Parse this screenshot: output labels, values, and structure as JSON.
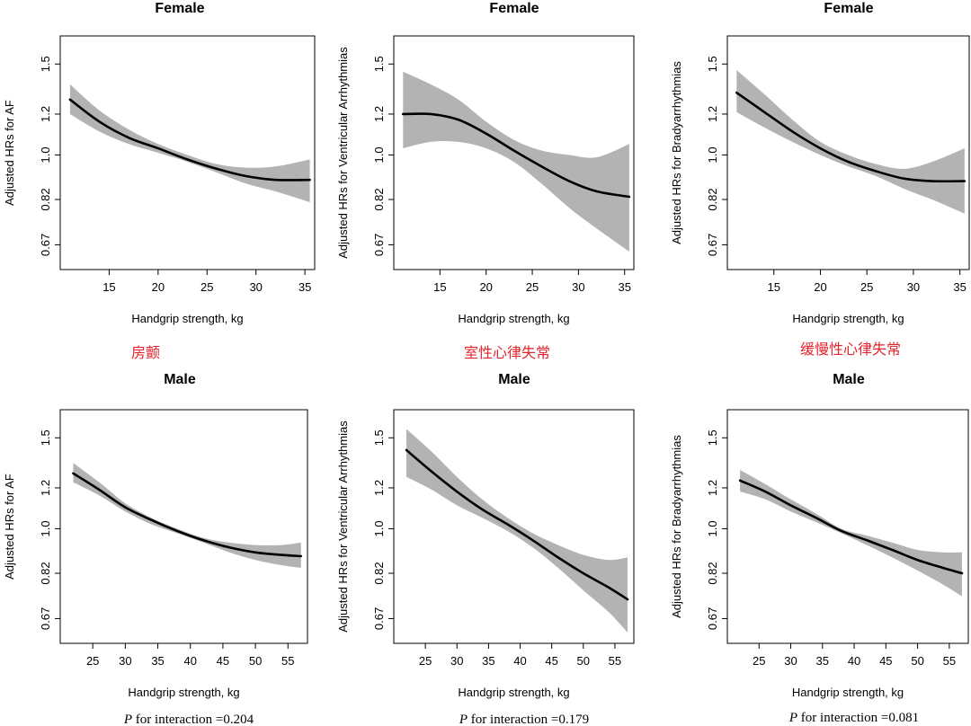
{
  "chart_data": [
    {
      "type": "line",
      "title": "Female",
      "xlabel": "Handgrip strength, kg",
      "ylabel": "Adjusted HRs for AF",
      "xlim": [
        10,
        36
      ],
      "ylim": [
        0.6,
        1.7
      ],
      "y_log_scale": true,
      "xticks": [
        15,
        20,
        25,
        30,
        35
      ],
      "yticks": [
        0.67,
        0.82,
        1.0,
        1.2,
        1.5
      ],
      "ytick_labels": [
        "0.67",
        "0.82",
        "1.0",
        "1.2",
        "1.5"
      ],
      "grid": false,
      "x": [
        11,
        14,
        17,
        20,
        23,
        26,
        29,
        32,
        35.5
      ],
      "y": [
        1.28,
        1.16,
        1.08,
        1.03,
        0.98,
        0.94,
        0.91,
        0.895,
        0.895
      ],
      "ci_lower": [
        1.2,
        1.11,
        1.05,
        1.01,
        0.97,
        0.925,
        0.88,
        0.85,
        0.81
      ],
      "ci_upper": [
        1.37,
        1.22,
        1.12,
        1.05,
        1.0,
        0.96,
        0.945,
        0.95,
        0.98
      ]
    },
    {
      "type": "line",
      "title": "Female",
      "xlabel": "Handgrip strength, kg",
      "ylabel": "Adjusted HRs for Ventricular Arrhythmias",
      "xlim": [
        10,
        36
      ],
      "ylim": [
        0.6,
        1.7
      ],
      "y_log_scale": true,
      "xticks": [
        15,
        20,
        25,
        30,
        35
      ],
      "yticks": [
        0.67,
        0.82,
        1.0,
        1.2,
        1.5
      ],
      "ytick_labels": [
        "0.67",
        "0.82",
        "1.0",
        "1.2",
        "1.5"
      ],
      "grid": false,
      "x": [
        11,
        14,
        17,
        20,
        23,
        26,
        29,
        32,
        35.5
      ],
      "y": [
        1.2,
        1.2,
        1.17,
        1.1,
        1.02,
        0.95,
        0.89,
        0.85,
        0.83
      ],
      "ci_lower": [
        1.03,
        1.06,
        1.06,
        1.03,
        0.97,
        0.88,
        0.79,
        0.72,
        0.65
      ],
      "ci_upper": [
        1.45,
        1.37,
        1.28,
        1.16,
        1.07,
        1.02,
        1.0,
        0.99,
        1.05
      ]
    },
    {
      "type": "line",
      "title": "Female",
      "xlabel": "Handgrip strength, kg",
      "ylabel": "Adjusted HRs for Bradyarrhythmias",
      "xlim": [
        10,
        36
      ],
      "ylim": [
        0.6,
        1.7
      ],
      "y_log_scale": true,
      "xticks": [
        15,
        20,
        25,
        30,
        35
      ],
      "yticks": [
        0.67,
        0.82,
        1.0,
        1.2,
        1.5
      ],
      "ytick_labels": [
        "0.67",
        "0.82",
        "1.0",
        "1.2",
        "1.5"
      ],
      "grid": false,
      "x": [
        11,
        14,
        17,
        20,
        23,
        26,
        29,
        32,
        35.5
      ],
      "y": [
        1.32,
        1.21,
        1.11,
        1.03,
        0.97,
        0.93,
        0.9,
        0.89,
        0.89
      ],
      "ci_lower": [
        1.21,
        1.13,
        1.06,
        1.0,
        0.95,
        0.91,
        0.86,
        0.82,
        0.77
      ],
      "ci_upper": [
        1.46,
        1.31,
        1.17,
        1.06,
        1.0,
        0.96,
        0.94,
        0.97,
        1.03
      ]
    },
    {
      "type": "line",
      "title": "Male",
      "xlabel": "Handgrip strength, kg",
      "ylabel": "Adjusted HRs for AF",
      "xlim": [
        20,
        58
      ],
      "ylim": [
        0.6,
        1.7
      ],
      "y_log_scale": true,
      "xticks": [
        25,
        30,
        35,
        40,
        45,
        50,
        55
      ],
      "yticks": [
        0.67,
        0.82,
        1.0,
        1.2,
        1.5
      ],
      "ytick_labels": [
        "0.67",
        "0.82",
        "1.0",
        "1.2",
        "1.5"
      ],
      "grid": false,
      "x": [
        22,
        26,
        30,
        34,
        38,
        42,
        46,
        50,
        54,
        57
      ],
      "y": [
        1.28,
        1.19,
        1.1,
        1.04,
        0.99,
        0.95,
        0.92,
        0.9,
        0.89,
        0.885
      ],
      "ci_lower": [
        1.23,
        1.16,
        1.08,
        1.02,
        0.98,
        0.94,
        0.9,
        0.87,
        0.85,
        0.84
      ],
      "ci_upper": [
        1.34,
        1.23,
        1.12,
        1.05,
        1.0,
        0.96,
        0.94,
        0.93,
        0.93,
        0.94
      ]
    },
    {
      "type": "line",
      "title": "Male",
      "xlabel": "Handgrip strength, kg",
      "ylabel": "Adjusted HRs for Ventricular Arrhythmias",
      "xlim": [
        20,
        58
      ],
      "ylim": [
        0.6,
        1.7
      ],
      "y_log_scale": true,
      "xticks": [
        25,
        30,
        35,
        40,
        45,
        50,
        55
      ],
      "yticks": [
        0.67,
        0.82,
        1.0,
        1.2,
        1.5
      ],
      "ytick_labels": [
        "0.67",
        "0.82",
        "1.0",
        "1.2",
        "1.5"
      ],
      "grid": false,
      "x": [
        22,
        26,
        30,
        34,
        38,
        42,
        46,
        50,
        54,
        57
      ],
      "y": [
        1.42,
        1.29,
        1.18,
        1.09,
        1.02,
        0.95,
        0.88,
        0.82,
        0.77,
        0.73
      ],
      "ci_lower": [
        1.26,
        1.19,
        1.11,
        1.05,
        0.99,
        0.92,
        0.84,
        0.76,
        0.69,
        0.63
      ],
      "ci_upper": [
        1.56,
        1.41,
        1.26,
        1.14,
        1.05,
        0.98,
        0.93,
        0.89,
        0.87,
        0.88
      ]
    },
    {
      "type": "line",
      "title": "Male",
      "xlabel": "Handgrip strength, kg",
      "ylabel": "Adjusted HRs for Bradyarrhythmias",
      "xlim": [
        20,
        58
      ],
      "ylim": [
        0.6,
        1.7
      ],
      "y_log_scale": true,
      "xticks": [
        25,
        30,
        35,
        40,
        45,
        50,
        55
      ],
      "yticks": [
        0.67,
        0.82,
        1.0,
        1.2,
        1.5
      ],
      "ytick_labels": [
        "0.67",
        "0.82",
        "1.0",
        "1.2",
        "1.5"
      ],
      "grid": false,
      "x": [
        22,
        26,
        30,
        34,
        38,
        42,
        46,
        50,
        54,
        57
      ],
      "y": [
        1.24,
        1.18,
        1.11,
        1.05,
        0.99,
        0.95,
        0.91,
        0.87,
        0.84,
        0.82
      ],
      "ci_lower": [
        1.18,
        1.14,
        1.08,
        1.03,
        0.98,
        0.93,
        0.88,
        0.83,
        0.78,
        0.74
      ],
      "ci_upper": [
        1.3,
        1.22,
        1.14,
        1.07,
        1.0,
        0.97,
        0.94,
        0.91,
        0.9,
        0.9
      ]
    }
  ],
  "outcome_labels": [
    "房颤",
    "室性心律失常",
    "缓慢性心律失常"
  ],
  "interaction": [
    {
      "p": "P",
      "text": " for interaction =0.204"
    },
    {
      "p": "P",
      "text": " for interaction =0.179"
    },
    {
      "p": "P",
      "text": " for interaction =0.081"
    }
  ],
  "colors": {
    "line": "#000000",
    "ci_band": "#b3b3b3",
    "annotation": "#e5232b"
  }
}
